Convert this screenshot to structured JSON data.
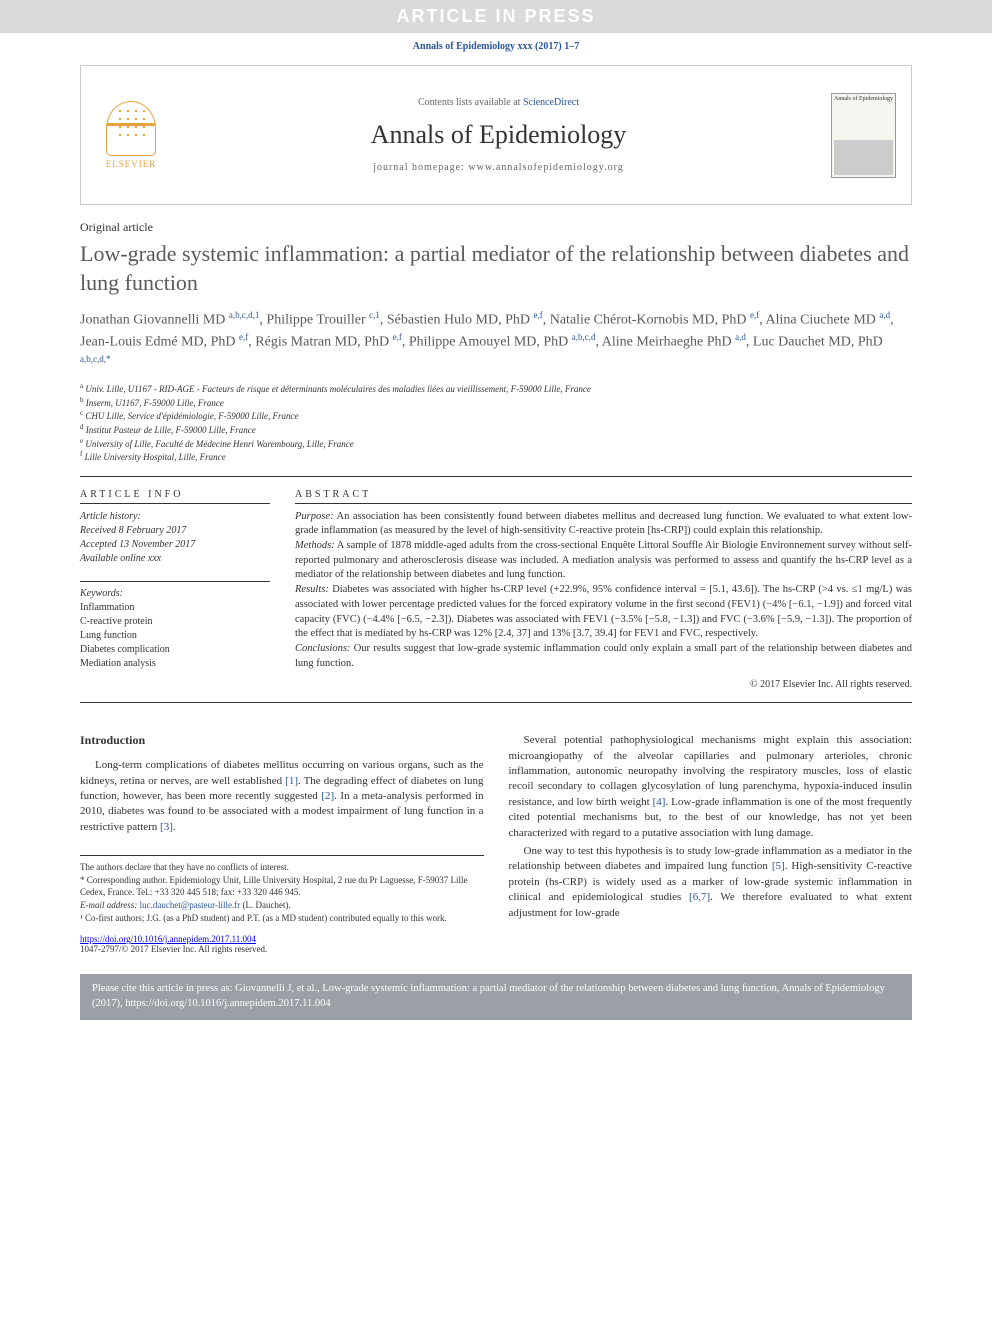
{
  "banner": {
    "text": "ARTICLE IN PRESS"
  },
  "citation_top": "Annals of Epidemiology xxx (2017) 1–7",
  "header": {
    "contents_prefix": "Contents lists available at ",
    "contents_link": "ScienceDirect",
    "journal_name": "Annals of Epidemiology",
    "homepage_prefix": "journal homepage: ",
    "homepage_url": "www.annalsofepidemiology.org",
    "publisher": "ELSEVIER",
    "cover_label": "Annals of Epidemiology"
  },
  "article": {
    "type": "Original article",
    "title": "Low-grade systemic inflammation: a partial mediator of the relationship between diabetes and lung function"
  },
  "authors_html": "Jonathan Giovannelli MD <sup>a,b,c,d,1</sup>, Philippe Trouiller <sup>c,1</sup>, Sébastien Hulo MD, PhD <sup>e,f</sup>, Natalie Chérot-Kornobis MD, PhD <sup>e,f</sup>, Alina Ciuchete MD <sup>a,d</sup>, Jean-Louis Edmé MD, PhD <sup>e,f</sup>, Régis Matran MD, PhD <sup>e,f</sup>, Philippe Amouyel MD, PhD <sup>a,b,c,d</sup>, Aline Meirhaeghe PhD <sup>a,d</sup>, Luc Dauchet MD, PhD <sup>a,b,c,d,*</sup>",
  "affiliations": [
    {
      "sup": "a",
      "text": "Univ. Lille, U1167 - RID-AGE - Facteurs de risque et déterminants moléculaires des maladies liées au vieillissement, F-59000 Lille, France"
    },
    {
      "sup": "b",
      "text": "Inserm, U1167, F-59000 Lille, France"
    },
    {
      "sup": "c",
      "text": "CHU Lille, Service d'épidémiologie, F-59000 Lille, France"
    },
    {
      "sup": "d",
      "text": "Institut Pasteur de Lille, F-59000 Lille, France"
    },
    {
      "sup": "e",
      "text": "University of Lille, Faculté de Médecine Henri Warembourg, Lille, France"
    },
    {
      "sup": "f",
      "text": "Lille University Hospital, Lille, France"
    }
  ],
  "info": {
    "heading": "ARTICLE INFO",
    "history_label": "Article history:",
    "received": "Received 8 February 2017",
    "accepted": "Accepted 13 November 2017",
    "online": "Available online xxx",
    "keywords_label": "Keywords:",
    "keywords": [
      "Inflammation",
      "C-reactive protein",
      "Lung function",
      "Diabetes complication",
      "Mediation analysis"
    ]
  },
  "abstract": {
    "heading": "ABSTRACT",
    "purpose_label": "Purpose:",
    "purpose": "An association has been consistently found between diabetes mellitus and decreased lung function. We evaluated to what extent low-grade inflammation (as measured by the level of high-sensitivity C-reactive protein [hs-CRP]) could explain this relationship.",
    "methods_label": "Methods:",
    "methods": "A sample of 1878 middle-aged adults from the cross-sectional Enquête Littoral Souffle Air Biologie Environnement survey without self-reported pulmonary and atherosclerosis disease was included. A mediation analysis was performed to assess and quantify the hs-CRP level as a mediator of the relationship between diabetes and lung function.",
    "results_label": "Results:",
    "results": "Diabetes was associated with higher hs-CRP level (+22.9%, 95% confidence interval = [5.1, 43.6]). The hs-CRP (>4 vs. ≤1 mg/L) was associated with lower percentage predicted values for the forced expiratory volume in the first second (FEV1) (−4% [−6.1, −1.9]) and forced vital capacity (FVC) (−4.4% [−6.5, −2.3]). Diabetes was associated with FEV1 (−3.5% [−5.8, −1.3]) and FVC (−3.6% [−5.9, −1.3]). The proportion of the effect that is mediated by hs-CRP was 12% [2.4, 37] and 13% [3.7, 39.4] for FEV1 and FVC, respectively.",
    "conclusions_label": "Conclusions:",
    "conclusions": "Our results suggest that low-grade systemic inflammation could only explain a small part of the relationship between diabetes and lung function.",
    "copyright": "© 2017 Elsevier Inc. All rights reserved."
  },
  "body": {
    "intro_heading": "Introduction",
    "col1_p1": "Long-term complications of diabetes mellitus occurring on various organs, such as the kidneys, retina or nerves, are well established [1]. The degrading effect of diabetes on lung function, however, has been more recently suggested [2]. In a meta-analysis performed in 2010, diabetes was found to be associated with a modest impairment of lung function in a restrictive pattern [3].",
    "col2_p1": "Several potential pathophysiological mechanisms might explain this association: microangiopathy of the alveolar capillaries and pulmonary arterioles, chronic inflammation, autonomic neuropathy involving the respiratory muscles, loss of elastic recoil secondary to collagen glycosylation of lung parenchyma, hypoxia-induced insulin resistance, and low birth weight [4]. Low-grade inflammation is one of the most frequently cited potential mechanisms but, to the best of our knowledge, has not yet been characterized with regard to a putative association with lung damage.",
    "col2_p2": "One way to test this hypothesis is to study low-grade inflammation as a mediator in the relationship between diabetes and impaired lung function [5]. High-sensitivity C-reactive protein (hs-CRP) is widely used as a marker of low-grade systemic inflammation in clinical and epidemiological studies [6,7]. We therefore evaluated to what extent adjustment for low-grade"
  },
  "footnotes": {
    "conflict": "The authors declare that they have no conflicts of interest.",
    "corresponding": "* Corresponding author. Epidemiology Unit, Lille University Hospital, 2 rue du Pr Laguesse, F-59037 Lille Cedex, France. Tel.: +33 320 445 518; fax: +33 320 446 945.",
    "email_label": "E-mail address:",
    "email": "luc.dauchet@pasteur-lille.fr",
    "email_suffix": "(L. Dauchet).",
    "cofirst": "¹ Co-first authors; J.G. (as a PhD student) and P.T. (as a MD student) contributed equally to this work."
  },
  "doi": {
    "url": "https://doi.org/10.1016/j.annepidem.2017.11.004",
    "issn_line": "1047-2797/© 2017 Elsevier Inc. All rights reserved."
  },
  "cite_footer": {
    "text": "Please cite this article in press as: Giovannelli J, et al., Low-grade systemic inflammation: a partial mediator of the relationship between diabetes and lung function, Annals of Epidemiology (2017), https://doi.org/10.1016/j.annepidem.2017.11.004"
  },
  "colors": {
    "banner_bg": "#d8dadc",
    "banner_text": "#ffffff",
    "link": "#2a5599",
    "elsevier": "#e8a23d",
    "heading_gray": "#5a5a5a",
    "footer_bg": "#9aa0a6"
  }
}
